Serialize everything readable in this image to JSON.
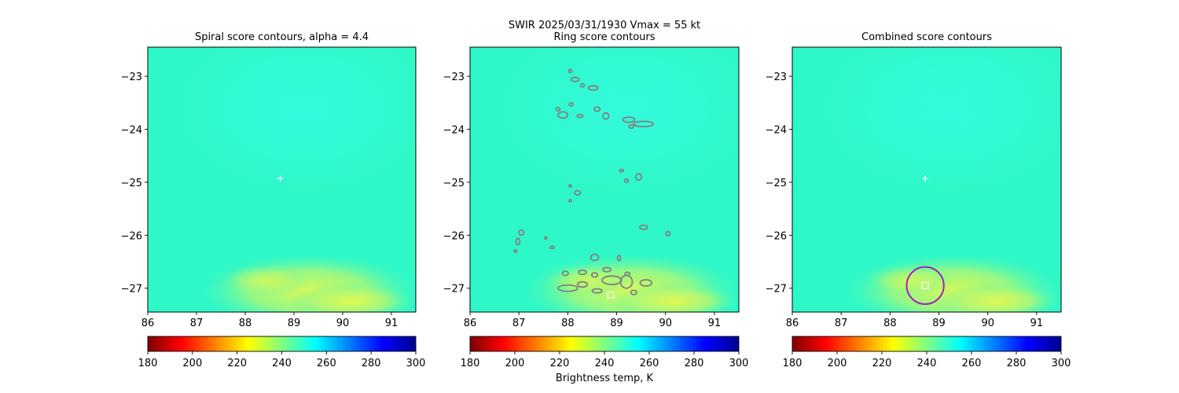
{
  "figure": {
    "suptitle_line1": "SWIR  2025/03/31/1930    Vmax = 55 kt"
  },
  "colorbar": {
    "label": "Brightness temp, K",
    "ticks": [
      180,
      200,
      220,
      240,
      260,
      280,
      300
    ],
    "range": [
      180,
      300
    ],
    "colormap": "jet_r",
    "colormap_stops": [
      "#7f0000",
      "#ff0000",
      "#ff8000",
      "#ffff00",
      "#80ff80",
      "#00ffff",
      "#0080ff",
      "#0000ff",
      "#00008f"
    ]
  },
  "colors": {
    "field_base": "#2ff8c8",
    "field_upper": "#30fad6",
    "warm_patch": "#d6f85a",
    "warm_patch_mid": "#a8f878",
    "ring_contour": "#808080",
    "combined_circle": "#a020c0",
    "marker": "#ffffff"
  },
  "chart_data": [
    {
      "type": "heatmap",
      "title": "Spiral score contours, alpha =  4.4",
      "xlim": [
        86.0,
        91.5
      ],
      "ylim": [
        -27.45,
        -22.45
      ],
      "xticks": [
        86,
        87,
        88,
        89,
        90,
        91
      ],
      "yticks": [
        -23,
        -24,
        -25,
        -26,
        -27
      ],
      "markers": [
        {
          "shape": "plus",
          "x": 88.72,
          "y": -24.93
        }
      ]
    },
    {
      "type": "heatmap",
      "title": "Ring score contours",
      "xlim": [
        86.0,
        91.5
      ],
      "ylim": [
        -27.45,
        -22.45
      ],
      "xticks": [
        86,
        87,
        88,
        89,
        90,
        91
      ],
      "yticks": [
        -23,
        -24,
        -25,
        -26,
        -27
      ],
      "markers": [
        {
          "shape": "square",
          "x": 88.88,
          "y": -27.13
        }
      ],
      "contour_blobs": [
        {
          "x": 88.05,
          "y": -22.9,
          "rx": 0.03,
          "ry": 0.03
        },
        {
          "x": 88.15,
          "y": -23.06,
          "rx": 0.08,
          "ry": 0.04
        },
        {
          "x": 88.52,
          "y": -23.22,
          "rx": 0.1,
          "ry": 0.04
        },
        {
          "x": 88.3,
          "y": -23.17,
          "rx": 0.04,
          "ry": 0.03
        },
        {
          "x": 87.8,
          "y": -23.62,
          "rx": 0.04,
          "ry": 0.03
        },
        {
          "x": 88.07,
          "y": -23.53,
          "rx": 0.04,
          "ry": 0.03
        },
        {
          "x": 87.9,
          "y": -23.73,
          "rx": 0.1,
          "ry": 0.06
        },
        {
          "x": 88.25,
          "y": -23.75,
          "rx": 0.06,
          "ry": 0.03
        },
        {
          "x": 88.6,
          "y": -23.62,
          "rx": 0.06,
          "ry": 0.04
        },
        {
          "x": 88.78,
          "y": -23.75,
          "rx": 0.06,
          "ry": 0.06
        },
        {
          "x": 89.25,
          "y": -23.82,
          "rx": 0.12,
          "ry": 0.05
        },
        {
          "x": 89.55,
          "y": -23.9,
          "rx": 0.2,
          "ry": 0.05
        },
        {
          "x": 89.3,
          "y": -23.95,
          "rx": 0.05,
          "ry": 0.03
        },
        {
          "x": 89.1,
          "y": -24.78,
          "rx": 0.04,
          "ry": 0.02
        },
        {
          "x": 89.45,
          "y": -24.9,
          "rx": 0.06,
          "ry": 0.06
        },
        {
          "x": 89.2,
          "y": -24.97,
          "rx": 0.04,
          "ry": 0.03
        },
        {
          "x": 88.2,
          "y": -25.2,
          "rx": 0.06,
          "ry": 0.04
        },
        {
          "x": 88.05,
          "y": -25.07,
          "rx": 0.02,
          "ry": 0.02
        },
        {
          "x": 88.05,
          "y": -25.35,
          "rx": 0.02,
          "ry": 0.02
        },
        {
          "x": 89.55,
          "y": -25.85,
          "rx": 0.08,
          "ry": 0.04
        },
        {
          "x": 90.05,
          "y": -25.97,
          "rx": 0.04,
          "ry": 0.04
        },
        {
          "x": 87.05,
          "y": -25.95,
          "rx": 0.05,
          "ry": 0.05
        },
        {
          "x": 86.98,
          "y": -26.12,
          "rx": 0.04,
          "ry": 0.06
        },
        {
          "x": 86.93,
          "y": -26.3,
          "rx": 0.03,
          "ry": 0.02
        },
        {
          "x": 87.55,
          "y": -26.05,
          "rx": 0.02,
          "ry": 0.02
        },
        {
          "x": 87.68,
          "y": -26.23,
          "rx": 0.04,
          "ry": 0.02
        },
        {
          "x": 88.55,
          "y": -26.42,
          "rx": 0.08,
          "ry": 0.06
        },
        {
          "x": 89.05,
          "y": -26.43,
          "rx": 0.03,
          "ry": 0.05
        },
        {
          "x": 88.8,
          "y": -26.65,
          "rx": 0.08,
          "ry": 0.04
        },
        {
          "x": 88.3,
          "y": -26.7,
          "rx": 0.08,
          "ry": 0.04
        },
        {
          "x": 87.95,
          "y": -26.72,
          "rx": 0.06,
          "ry": 0.04
        },
        {
          "x": 89.22,
          "y": -26.73,
          "rx": 0.05,
          "ry": 0.03
        },
        {
          "x": 88.55,
          "y": -26.75,
          "rx": 0.06,
          "ry": 0.04
        },
        {
          "x": 88.9,
          "y": -26.85,
          "rx": 0.2,
          "ry": 0.08
        },
        {
          "x": 88.3,
          "y": -26.93,
          "rx": 0.1,
          "ry": 0.05
        },
        {
          "x": 89.2,
          "y": -26.88,
          "rx": 0.12,
          "ry": 0.12
        },
        {
          "x": 89.6,
          "y": -26.9,
          "rx": 0.12,
          "ry": 0.06
        },
        {
          "x": 88.0,
          "y": -27.0,
          "rx": 0.2,
          "ry": 0.06
        },
        {
          "x": 88.6,
          "y": -27.05,
          "rx": 0.1,
          "ry": 0.04
        },
        {
          "x": 89.35,
          "y": -27.08,
          "rx": 0.06,
          "ry": 0.04
        }
      ]
    },
    {
      "type": "heatmap",
      "title": "Combined score contours",
      "xlim": [
        86.0,
        91.5
      ],
      "ylim": [
        -27.45,
        -22.45
      ],
      "xticks": [
        86,
        87,
        88,
        89,
        90,
        91
      ],
      "yticks": [
        -23,
        -24,
        -25,
        -26,
        -27
      ],
      "markers": [
        {
          "shape": "plus",
          "x": 88.72,
          "y": -24.93
        },
        {
          "shape": "square",
          "x": 88.72,
          "y": -26.95
        }
      ],
      "circle": {
        "x": 88.72,
        "y": -26.95,
        "radius_deg": 0.38
      }
    }
  ]
}
